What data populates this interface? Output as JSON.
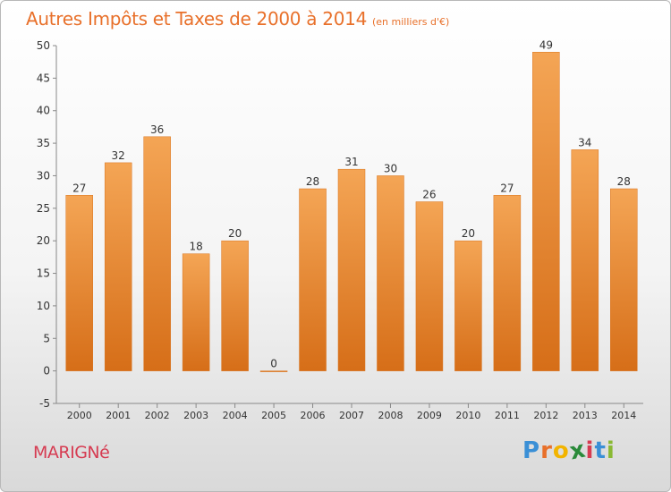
{
  "title": "Autres Impôts et Taxes de 2000 à 2014",
  "subtitle": "(en milliers d'€)",
  "town": "MARIGNé",
  "brand": {
    "letters": [
      "P",
      "r",
      "o",
      "x",
      "i",
      "t",
      "i"
    ],
    "colors": [
      "#3a8fd6",
      "#e8702a",
      "#f2b400",
      "#2a8a3a",
      "#d63c52",
      "#3a8fd6",
      "#8ab934"
    ]
  },
  "colors": {
    "bar": "#f0953e",
    "bar_dark": "#d9741e",
    "axis": "#888888",
    "text": "#333333"
  },
  "chart_data": {
    "type": "bar",
    "categories": [
      "2000",
      "2001",
      "2002",
      "2003",
      "2004",
      "2005",
      "2006",
      "2007",
      "2008",
      "2009",
      "2010",
      "2011",
      "2012",
      "2013",
      "2014"
    ],
    "values": [
      27,
      32,
      36,
      18,
      20,
      0,
      28,
      31,
      30,
      26,
      20,
      27,
      49,
      34,
      28
    ],
    "title": "Autres Impôts et Taxes de 2000 à 2014",
    "ylim": [
      -5,
      50
    ],
    "yticks": [
      -5,
      0,
      5,
      10,
      15,
      20,
      25,
      30,
      35,
      40,
      45,
      50
    ],
    "grid": false,
    "legend": "none"
  }
}
